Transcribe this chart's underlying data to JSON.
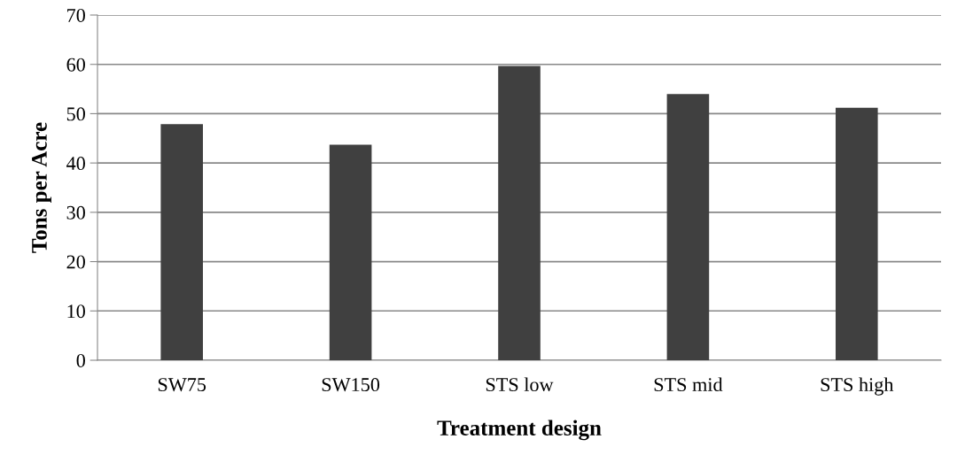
{
  "chart_data": {
    "type": "bar",
    "xlabel": "Treatment design",
    "ylabel": "Tons per Acre",
    "categories": [
      "SW75",
      "SW150",
      "STS low",
      "STS mid",
      "STS high"
    ],
    "values": [
      47.9,
      43.7,
      59.7,
      54.0,
      51.2
    ],
    "color": "#404040",
    "ylim": [
      0,
      70
    ],
    "yticks": [
      0,
      10,
      20,
      30,
      40,
      50,
      60,
      70
    ],
    "grid": "y"
  }
}
